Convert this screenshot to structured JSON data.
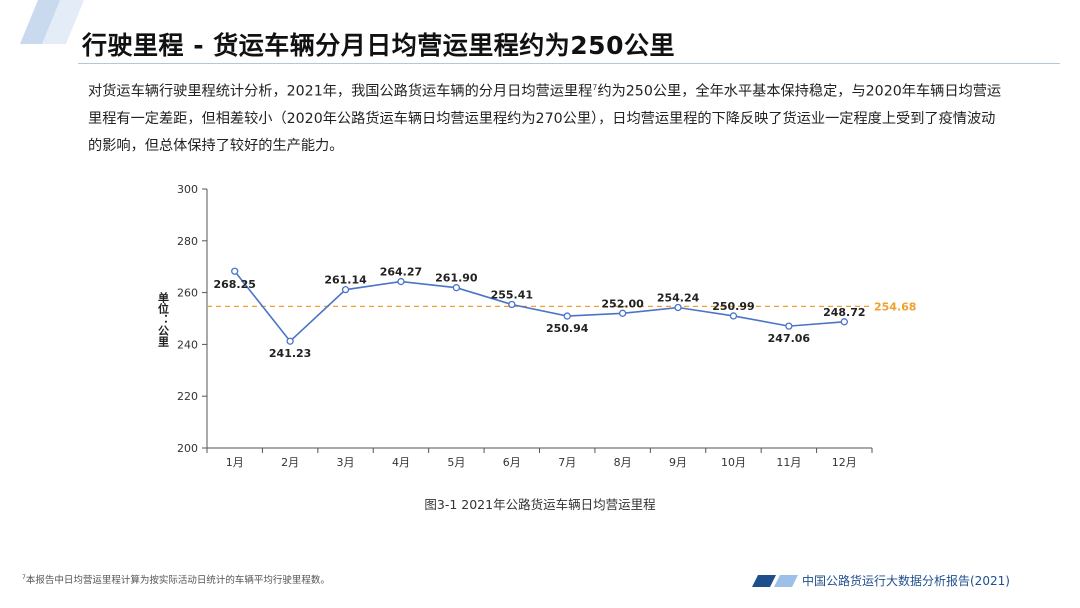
{
  "title": "行驶里程 - 货运车辆分月日均营运里程约为250公里",
  "intro_text_1": "对货运车辆行驶里程统计分析，2021年，我国公路货运车辆的分月日均营运里程",
  "intro_footnote_mark": "7",
  "intro_text_2": "约为250公里，全年水平基本保持稳定，与2020年车辆日均营运里程有一定差距，但相差较小（2020年公路货运车辆日均营运里程约为270公里），日均营运里程的下降反映了货运业一定程度上受到了疫情波动的影响，但总体保持了较好的生产能力。",
  "chart_data": {
    "type": "line",
    "categories": [
      "1月",
      "2月",
      "3月",
      "4月",
      "5月",
      "6月",
      "7月",
      "8月",
      "9月",
      "10月",
      "11月",
      "12月"
    ],
    "values": [
      268.25,
      241.23,
      261.14,
      264.27,
      261.9,
      255.41,
      250.94,
      252.0,
      254.24,
      250.99,
      247.06,
      248.72
    ],
    "value_labels": [
      "268.25",
      "241.23",
      "261.14",
      "264.27",
      "261.90",
      "255.41",
      "250.94",
      "252.00",
      "254.24",
      "250.99",
      "247.06",
      "248.72"
    ],
    "average_line": 254.68,
    "average_label": "254.68",
    "ylabel": "单位：公里",
    "ylim": [
      200,
      300
    ],
    "yticks": [
      "200",
      "220",
      "240",
      "260",
      "280",
      "300"
    ],
    "ytick_values": [
      200,
      220,
      240,
      260,
      280,
      300
    ],
    "grid": false,
    "line_color": "#4a74c9",
    "marker_color": "#ffffff",
    "average_color": "#f0a030"
  },
  "caption": "图3-1 2021年公路货运车辆日均营运里程",
  "footnote_mark": "7",
  "footnote": "本报告中日均营运里程计算为按实际活动日统计的车辆平均行驶里程数。",
  "footer": "中国公路货运行大数据分析报告(2021)",
  "colors": {
    "accent": "#1f4e8c",
    "light_accent": "#9cc0e8"
  }
}
